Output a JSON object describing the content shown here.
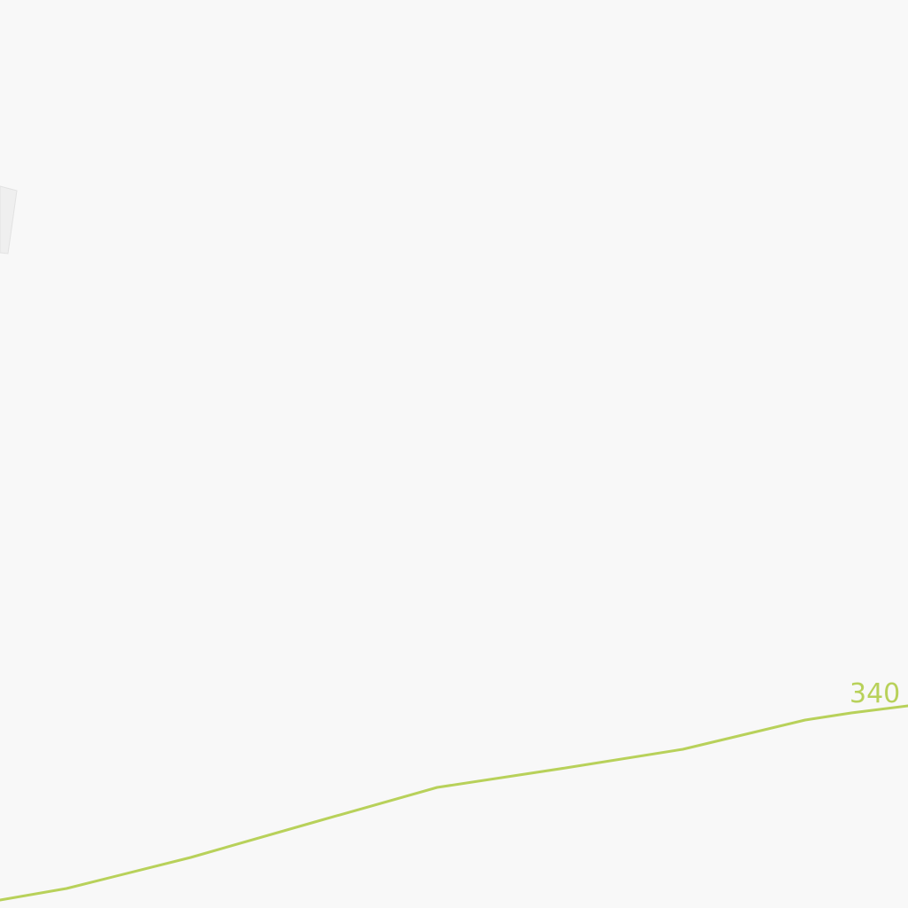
{
  "map": {
    "background_color": "#f8f8f8",
    "building_fill": "#efefef",
    "building_stroke": "#e2e2e2",
    "contour": {
      "label": "340",
      "color": "#b8d15a"
    }
  }
}
